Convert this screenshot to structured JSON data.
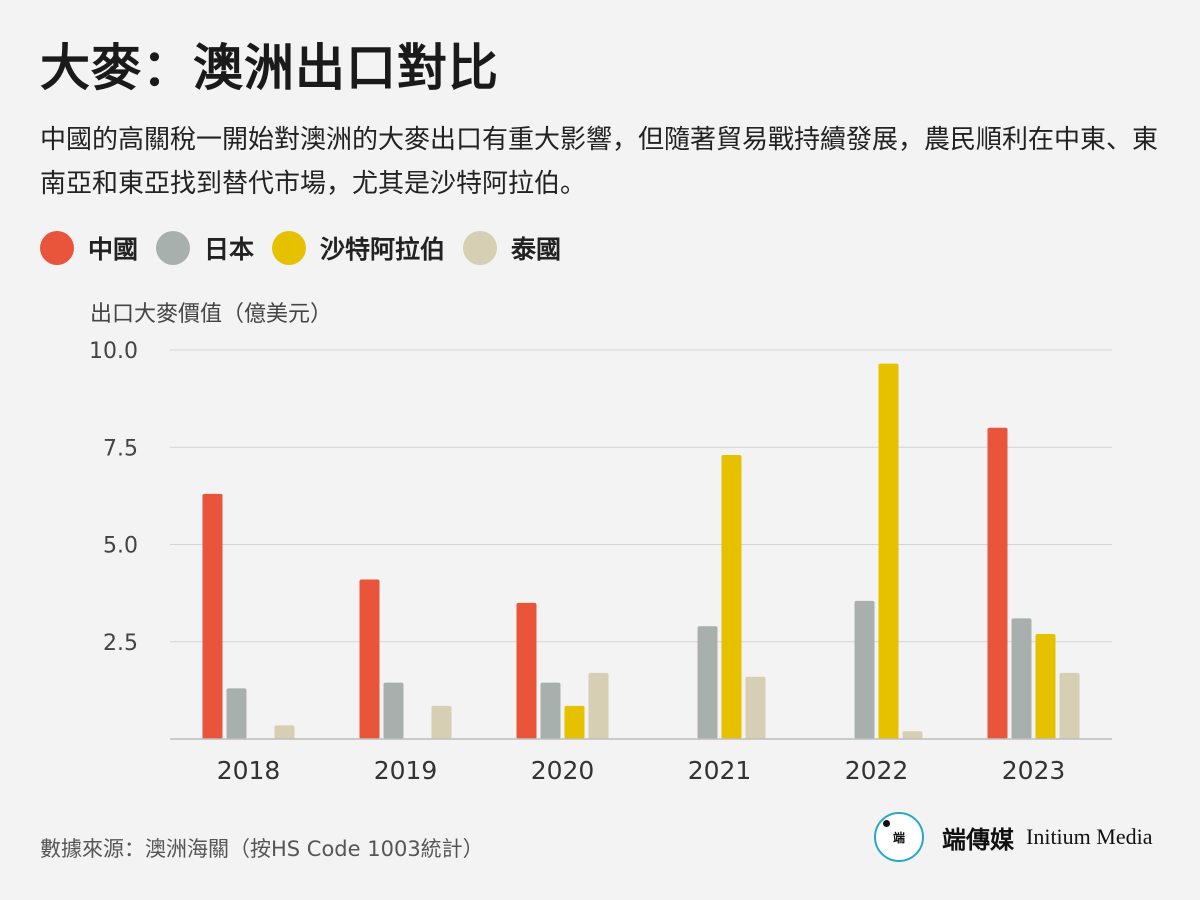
{
  "title": "大麥：澳洲出口對比",
  "subtitle": "中國的高關稅一開始對澳洲的大麥出口有重大影響，但隨著貿易戰持續發展，農民順利在中東、東南亞和東亞找到替代市場，尤其是沙特阿拉伯。",
  "source": "數據來源：澳洲海關（按HS Code 1003統計）",
  "brand": {
    "logo_text": "端",
    "name_cn": "端傳媒",
    "name_en": "Initium Media"
  },
  "legend": [
    {
      "name": "中國",
      "color": "#e8553a"
    },
    {
      "name": "日本",
      "color": "#a8b0ae"
    },
    {
      "name": "沙特阿拉伯",
      "color": "#e5c100"
    },
    {
      "name": "泰國",
      "color": "#d6cfb4"
    }
  ],
  "chart_data": {
    "type": "bar",
    "ylabel": "出口大麥價值（億美元）",
    "xlabel": "",
    "ylim": [
      0,
      10
    ],
    "yticks": [
      "2.5",
      "5.0",
      "7.5",
      "10.0"
    ],
    "grid": true,
    "legend_position": "top-left",
    "categories": [
      "2018",
      "2019",
      "2020",
      "2021",
      "2022",
      "2023"
    ],
    "series": [
      {
        "name": "中國",
        "color": "#e8553a",
        "values": [
          6.3,
          4.1,
          3.5,
          0,
          0,
          8.0
        ]
      },
      {
        "name": "日本",
        "color": "#a8b0ae",
        "values": [
          1.3,
          1.45,
          1.45,
          2.9,
          3.55,
          3.1
        ]
      },
      {
        "name": "沙特阿拉伯",
        "color": "#e5c100",
        "values": [
          0,
          0,
          0.85,
          7.3,
          9.65,
          2.7
        ]
      },
      {
        "name": "泰國",
        "color": "#d6cfb4",
        "values": [
          0.35,
          0.85,
          1.7,
          1.6,
          0.2,
          1.7
        ]
      }
    ]
  }
}
